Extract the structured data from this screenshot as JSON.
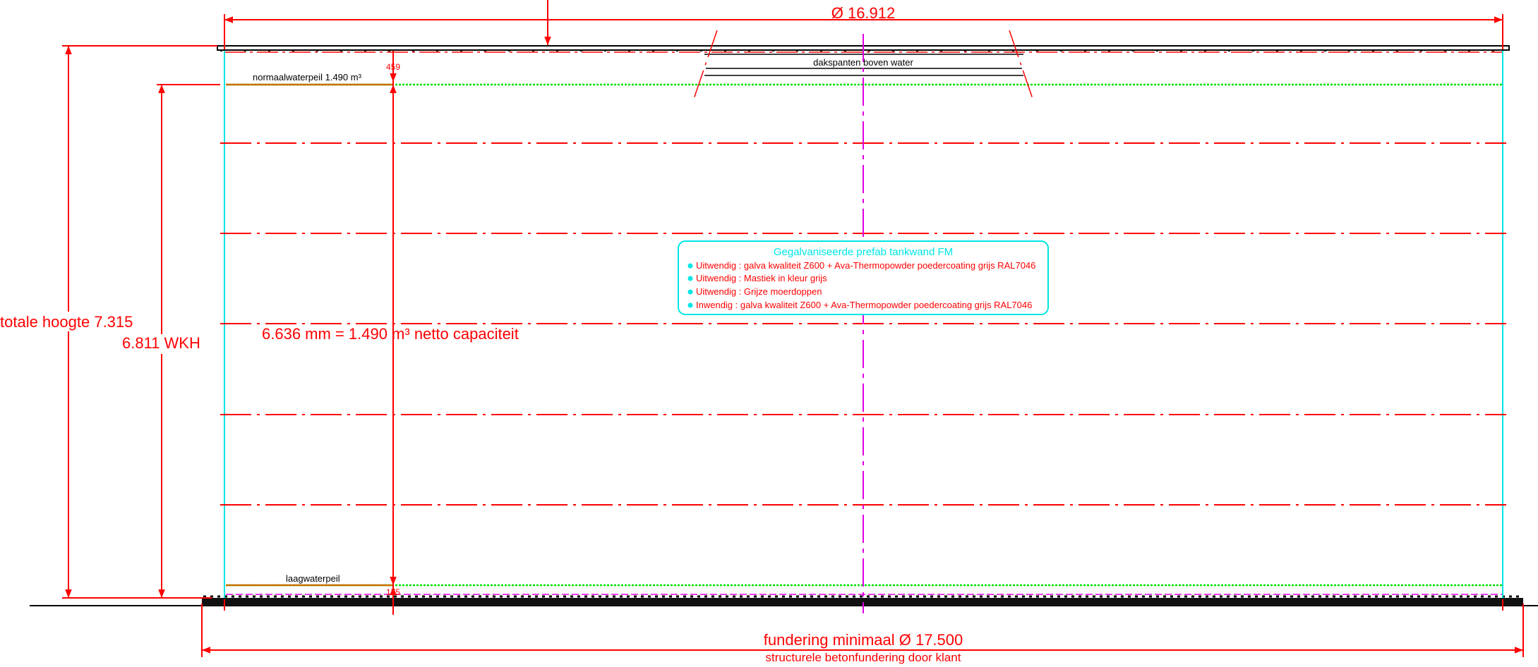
{
  "colors": {
    "dimension": "#ff0000",
    "wall": "#00e5e5",
    "water": "#00e000",
    "centerline": "#e000e0",
    "ground": "#000000",
    "callout_border": "#00e5e5"
  },
  "dimensions": {
    "top_diameter": "Ø 16.912",
    "total_height": "totale hoogte 7.315",
    "wkh": "6.811 WKH",
    "net_capacity": "6.636 mm = 1.490 m³ netto capaciteit",
    "top_offset": "459",
    "bottom_offset": "175",
    "foundation": "fundering minimaal Ø 17.500",
    "foundation_note": "structurele betonfundering door klant"
  },
  "labels": {
    "normal_water": "normaalwaterpeil 1.490 m³",
    "low_water": "laagwaterpeil",
    "rafters": "dakspanten boven water"
  },
  "callout": {
    "title": "Gegalvaniseerde prefab tankwand FM",
    "items": [
      "Uitwendig : galva kwaliteit Z600 + Ava-Thermopowder poedercoating grijs RAL7046",
      "Uitwendig : Mastiek in kleur  grijs",
      "Uitwendig : Grijze moerdoppen",
      "Inwendig  : galva kwaliteit Z600 + Ava-Thermopowder poedercoating grijs RAL7046"
    ]
  }
}
